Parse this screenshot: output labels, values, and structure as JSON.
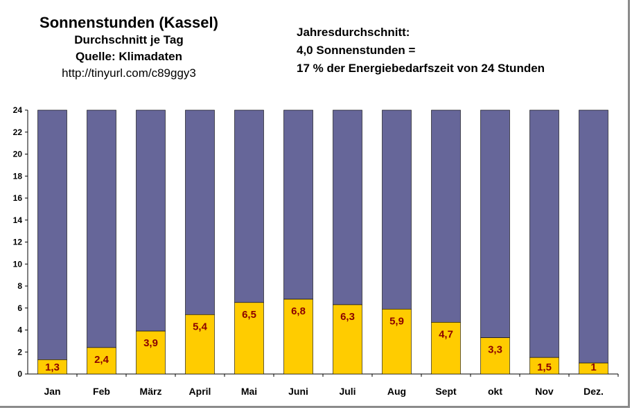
{
  "header": {
    "title": "Sonnenstunden (Kassel)",
    "subtitle": "Durchschnitt je Tag",
    "source": "Quelle: Klimadaten",
    "url": "http://tinyurl.com/c89ggy3"
  },
  "info": {
    "line1": "Jahresdurchschnitt:",
    "line2": "4,0 Sonnenstunden =",
    "line3": "17 % der Energiebedarfszeit von 24 Stunden"
  },
  "chart_data": {
    "type": "bar",
    "stacked": true,
    "title": "Sonnenstunden (Kassel)",
    "categories": [
      "Jan",
      "Feb",
      "März",
      "April",
      "Mai",
      "Juni",
      "Juli",
      "Aug",
      "Sept",
      "okt",
      "Nov",
      "Dez."
    ],
    "series": [
      {
        "values": [
          1.3,
          2.4,
          3.9,
          5.4,
          6.5,
          6.8,
          6.3,
          5.9,
          4.7,
          3.3,
          1.5,
          1.0
        ],
        "labels": [
          "1,3",
          "2,4",
          "3,9",
          "5,4",
          "6,5",
          "6,8",
          "6,3",
          "5,9",
          "4,7",
          "3,3",
          "1,5",
          "1"
        ],
        "color": "#ffcc00"
      },
      {
        "values": [
          22.7,
          21.6,
          20.1,
          18.6,
          17.5,
          17.2,
          17.7,
          18.1,
          19.3,
          20.7,
          22.5,
          23.0
        ],
        "color": "#666699"
      }
    ],
    "ylim": [
      0,
      24
    ],
    "yticks": [
      "0",
      "2",
      "4",
      "6",
      "8",
      "10",
      "12",
      "14",
      "16",
      "18",
      "20",
      "22",
      "24"
    ],
    "grid": false,
    "legend": "none"
  }
}
